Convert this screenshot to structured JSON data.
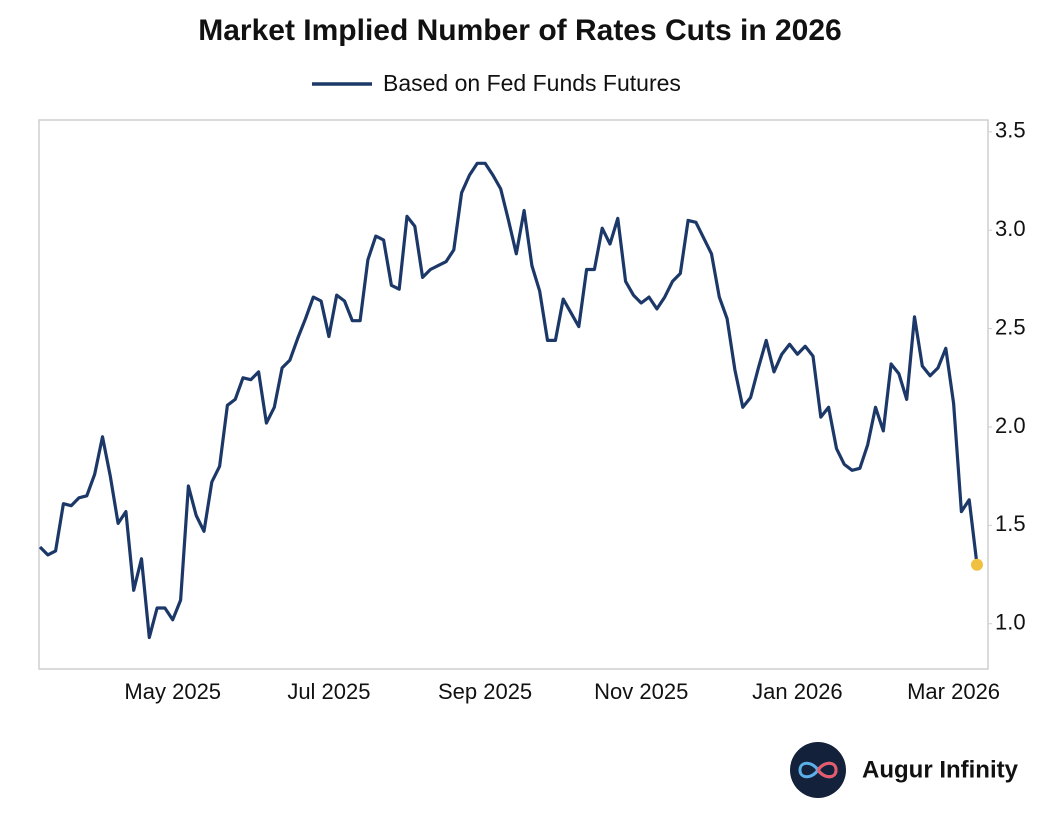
{
  "chart_data": {
    "type": "line",
    "title": "Market Implied Number of Rates Cuts in 2026",
    "categories": [
      null,
      null,
      null,
      null,
      null,
      null,
      null,
      null,
      null,
      null,
      null,
      null,
      null,
      null,
      null,
      null,
      null,
      "May 2025",
      null,
      null,
      null,
      null,
      null,
      null,
      null,
      null,
      null,
      null,
      null,
      null,
      null,
      null,
      null,
      null,
      null,
      null,
      null,
      "Jul 2025",
      null,
      null,
      null,
      null,
      null,
      null,
      null,
      null,
      null,
      null,
      null,
      null,
      null,
      null,
      null,
      null,
      null,
      null,
      null,
      "Sep 2025",
      null,
      null,
      null,
      null,
      null,
      null,
      null,
      null,
      null,
      null,
      null,
      null,
      null,
      null,
      null,
      null,
      null,
      null,
      null,
      "Nov 2025",
      null,
      null,
      null,
      null,
      null,
      null,
      null,
      null,
      null,
      null,
      null,
      null,
      null,
      null,
      null,
      null,
      null,
      null,
      null,
      "Jan 2026",
      null,
      null,
      null,
      null,
      null,
      null,
      null,
      null,
      null,
      null,
      null,
      null,
      null,
      null,
      null,
      null,
      null,
      null,
      null,
      "Mar 2026",
      null,
      null,
      null
    ],
    "series": [
      {
        "name": "Based on Fed Funds Futures",
        "color": "#1c3868",
        "values": [
          1.39,
          1.35,
          1.37,
          1.61,
          1.6,
          1.64,
          1.65,
          1.76,
          1.95,
          1.75,
          1.51,
          1.57,
          1.17,
          1.33,
          0.93,
          1.08,
          1.08,
          1.02,
          1.12,
          1.7,
          1.55,
          1.47,
          1.72,
          1.8,
          2.11,
          2.14,
          2.25,
          2.24,
          2.28,
          2.02,
          2.1,
          2.3,
          2.34,
          2.45,
          2.55,
          2.66,
          2.64,
          2.46,
          2.67,
          2.64,
          2.54,
          2.54,
          2.85,
          2.97,
          2.95,
          2.72,
          2.7,
          3.07,
          3.02,
          2.76,
          2.8,
          2.82,
          2.84,
          2.9,
          3.19,
          3.28,
          3.34,
          3.34,
          3.28,
          3.21,
          3.05,
          2.88,
          3.1,
          2.82,
          2.69,
          2.44,
          2.44,
          2.65,
          2.58,
          2.51,
          2.8,
          2.8,
          3.01,
          2.93,
          3.06,
          2.74,
          2.67,
          2.63,
          2.66,
          2.6,
          2.66,
          2.74,
          2.78,
          3.05,
          3.04,
          2.96,
          2.88,
          2.66,
          2.55,
          2.29,
          2.1,
          2.15,
          2.3,
          2.44,
          2.28,
          2.37,
          2.42,
          2.37,
          2.41,
          2.36,
          2.05,
          2.1,
          1.89,
          1.81,
          1.78,
          1.79,
          1.91,
          2.1,
          1.98,
          2.32,
          2.27,
          2.14,
          2.56,
          2.31,
          2.26,
          2.3,
          2.4,
          2.12,
          1.57,
          1.63,
          1.3
        ]
      }
    ],
    "last_point_color": "#f0c040",
    "ylim": [
      0.77,
      3.56
    ],
    "yticks": [
      {
        "value": 1,
        "label": "1.0"
      },
      {
        "value": 1.5,
        "label": "1.5"
      },
      {
        "value": 2,
        "label": "2.0"
      },
      {
        "value": 2.5,
        "label": "2.5"
      },
      {
        "value": 3,
        "label": "3.0"
      },
      {
        "value": 3.5,
        "label": "3.5"
      }
    ],
    "grid": false
  },
  "footer": {
    "brand": "Augur Infinity"
  }
}
